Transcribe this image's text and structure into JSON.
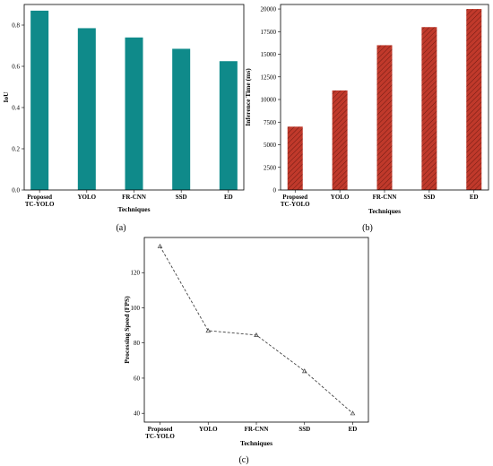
{
  "chart_data": [
    {
      "type": "bar",
      "panel_label": "(a)",
      "categories": [
        "Proposed TC-YOLO",
        "YOLO",
        "FR-CNN",
        "SSD",
        "ED"
      ],
      "category_lines": [
        [
          "Proposed",
          "TC-YOLO"
        ],
        [
          "YOLO"
        ],
        [
          "FR-CNN"
        ],
        [
          "SSD"
        ],
        [
          "ED"
        ]
      ],
      "values": [
        0.87,
        0.785,
        0.74,
        0.685,
        0.625
      ],
      "xlabel": "Techniques",
      "ylabel": "IoU",
      "ylim": [
        0,
        0.9
      ],
      "yticks": [
        0.0,
        0.2,
        0.4,
        0.6,
        0.8
      ],
      "ytick_labels": [
        "0.0",
        "0.2",
        "0.4",
        "0.6",
        "0.8"
      ],
      "color": "#0f8a8a",
      "grid": false
    },
    {
      "type": "bar",
      "panel_label": "(b)",
      "categories": [
        "Proposed TC-YOLO",
        "YOLO",
        "FR-CNN",
        "SSD",
        "ED"
      ],
      "category_lines": [
        [
          "Proposed",
          "TC-YOLO"
        ],
        [
          "YOLO"
        ],
        [
          "FR-CNN"
        ],
        [
          "SSD"
        ],
        [
          "ED"
        ]
      ],
      "values": [
        7000,
        11000,
        16000,
        18000,
        20000
      ],
      "xlabel": "Techniques",
      "ylabel": "Inference Time (ms)",
      "ylim": [
        0,
        20500
      ],
      "yticks": [
        0,
        2500,
        5000,
        7500,
        10000,
        12500,
        15000,
        17500,
        20000
      ],
      "ytick_labels": [
        "0",
        "2500",
        "5000",
        "7500",
        "10000",
        "12500",
        "15000",
        "17500",
        "20000"
      ],
      "color": "#c0392b",
      "hatch": "diagonal",
      "grid": false
    },
    {
      "type": "line",
      "panel_label": "(c)",
      "categories": [
        "Proposed TC-YOLO",
        "YOLO",
        "FR-CNN",
        "SSD",
        "ED"
      ],
      "category_lines": [
        [
          "Proposed",
          "TC-YOLO"
        ],
        [
          "YOLO"
        ],
        [
          "FR-CNN"
        ],
        [
          "SSD"
        ],
        [
          "ED"
        ]
      ],
      "values": [
        135,
        87,
        84.5,
        64,
        40
      ],
      "xlabel": "Techniques",
      "ylabel": "Processing Speed (FPS)",
      "ylim": [
        35,
        140
      ],
      "yticks": [
        40,
        60,
        80,
        100,
        120
      ],
      "ytick_labels": [
        "40",
        "60",
        "80",
        "100",
        "120"
      ],
      "line_style": "dashed",
      "marker": "triangle",
      "color": "#444444",
      "grid": false
    }
  ]
}
